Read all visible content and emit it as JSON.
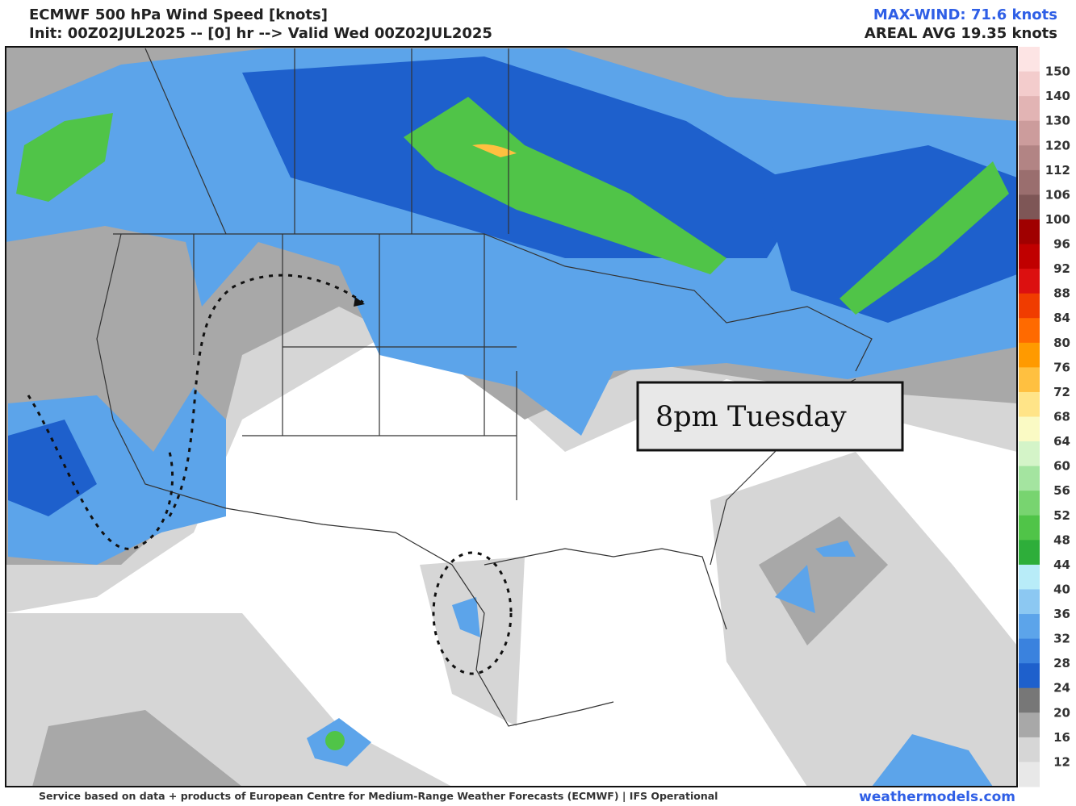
{
  "header": {
    "title": "ECMWF 500 hPa Wind Speed [knots]",
    "init": "Init: 00Z02JUL2025 -- [0] hr --> Valid Wed 00Z02JUL2025",
    "max_wind": "MAX-WIND: 71.6 knots",
    "areal_avg": "AREAL AVG 19.35 knots"
  },
  "annotation": "8pm Tuesday",
  "colorbar": {
    "labels": [
      "150",
      "140",
      "130",
      "120",
      "112",
      "106",
      "100",
      "96",
      "92",
      "88",
      "84",
      "80",
      "76",
      "72",
      "68",
      "64",
      "60",
      "56",
      "52",
      "48",
      "44",
      "40",
      "36",
      "32",
      "28",
      "24",
      "20",
      "16",
      "12"
    ],
    "colors": [
      "#fde4e4",
      "#f3cccc",
      "#e2b4b4",
      "#cc9c9c",
      "#b28484",
      "#9a6e6e",
      "#7e5656",
      "#a00000",
      "#c00000",
      "#dc1010",
      "#f03c00",
      "#ff6a00",
      "#ff9a00",
      "#ffc040",
      "#ffe488",
      "#fafac4",
      "#d4f4c8",
      "#a4e4a0",
      "#78d470",
      "#50c448",
      "#2eae3a",
      "#b8ecf8",
      "#8cc8f2",
      "#5ca4ea",
      "#3a82de",
      "#1e60cc",
      "#777777",
      "#a8a8a8",
      "#d6d6d6",
      "#e8e8e8"
    ]
  },
  "footer": {
    "credit": "Service based on data + products of European Centre for Medium-Range Weather Forecasts (ECMWF) | IFS Operational",
    "site": "weathermodels.com"
  }
}
